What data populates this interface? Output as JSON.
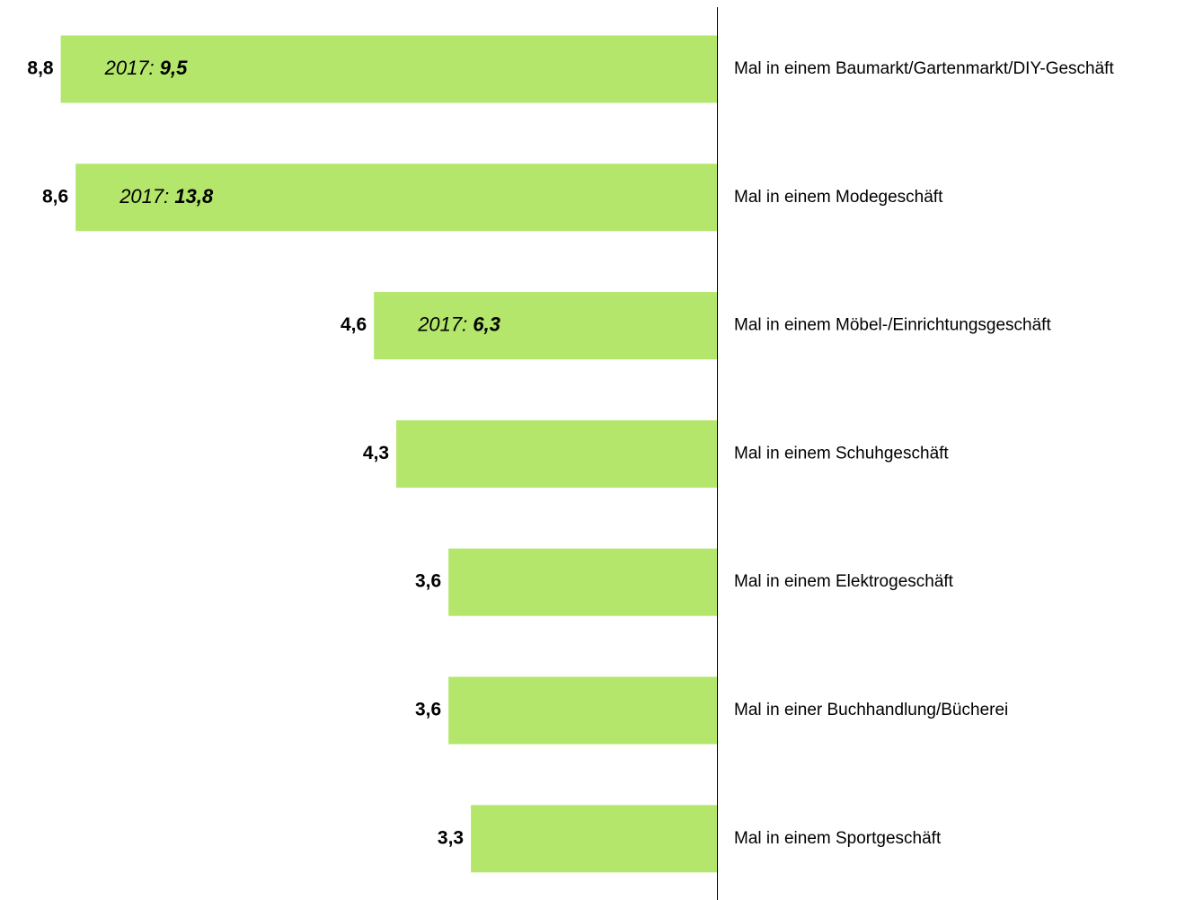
{
  "chart_data": {
    "type": "bar",
    "orientation": "horizontal",
    "direction": "left",
    "categories": [
      "Mal in einem Baumarkt/Gartenmarkt/DIY-Geschäft",
      "Mal in einem Modegeschäft",
      "Mal in einem Möbel-/Einrichtungsgeschäft",
      "Mal in einem Schuhgeschäft",
      "Mal in einem Elektrogeschäft",
      "Mal in einer Buchhandlung/Bücherei",
      "Mal in einem Sportgeschäft"
    ],
    "values": [
      8.8,
      8.6,
      4.6,
      4.3,
      3.6,
      3.6,
      3.3
    ],
    "value_labels": [
      "8,8",
      "8,6",
      "4,6",
      "4,3",
      "3,6",
      "3,6",
      "3,3"
    ],
    "color": "#b3e66b",
    "previous": {
      "label": "2017:",
      "values": [
        9.5,
        13.8,
        6.3,
        null,
        null,
        null,
        null
      ],
      "value_labels": [
        "9,5",
        "13,8",
        "6,3",
        null,
        null,
        null,
        null
      ]
    }
  }
}
